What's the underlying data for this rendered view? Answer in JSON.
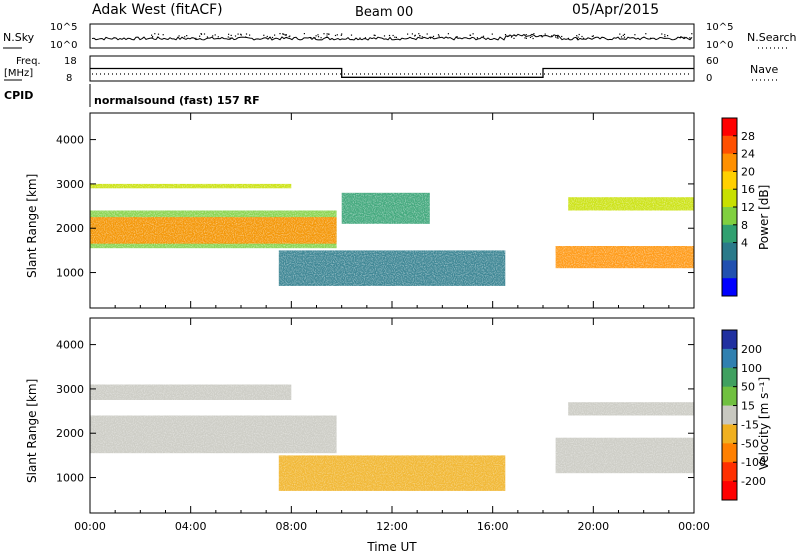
{
  "header": {
    "station": "Adak West (fitACF)",
    "beam": "Beam 00",
    "date": "05/Apr/2015"
  },
  "noise_panel": {
    "left_label": "N.Sky",
    "right_label": "N.Search",
    "left_ticks": [
      "10^5",
      "10^0"
    ],
    "right_ticks": [
      "10^5",
      "10^0"
    ]
  },
  "freq_panel": {
    "left_label_line1": "Freq.",
    "left_label_line2": "[MHz]",
    "left_ticks": [
      "18",
      "8"
    ],
    "right_label": "Nave",
    "right_ticks": [
      "60",
      "0"
    ]
  },
  "cpid_panel": {
    "label": "CPID",
    "program": "normalsound (fast) 157 RF"
  },
  "power_panel": {
    "ylabel": "Slant Range [km]",
    "y_ticks": [
      "4000",
      "3000",
      "2000",
      "1000"
    ],
    "colorbar_label": "Power [dB]",
    "colorbar_ticks": [
      "28",
      "24",
      "20",
      "16",
      "12",
      "8",
      "4"
    ],
    "colorbar_colors": [
      "#ff0000",
      "#ff5000",
      "#ff9000",
      "#ffd000",
      "#c8e000",
      "#80d040",
      "#30a070",
      "#2a7a8a",
      "#2050b0",
      "#0000ff"
    ]
  },
  "velocity_panel": {
    "ylabel": "Slant Range [km]",
    "y_ticks": [
      "4000",
      "3000",
      "2000",
      "1000"
    ],
    "colorbar_label": "Velocity [m s⁻¹]",
    "colorbar_ticks": [
      "200",
      "100",
      "50",
      "15",
      "-15",
      "-50",
      "-100",
      "-200"
    ],
    "colorbar_colors": [
      "#2030a0",
      "#3080b0",
      "#40a060",
      "#70c040",
      "#c8c8c0",
      "#f0b020",
      "#ff8000",
      "#ff3000",
      "#ff0000"
    ]
  },
  "x_axis": {
    "label": "Time UT",
    "ticks": [
      "00:00",
      "04:00",
      "08:00",
      "12:00",
      "16:00",
      "20:00",
      "00:00"
    ]
  },
  "chart_data": {
    "type": "heatmap",
    "title": "Adak West (fitACF)",
    "subtitle": "Beam 00 05/Apr/2015",
    "xlabel": "Time UT",
    "ylabel": "Slant Range [km]",
    "x_range_hours": [
      0,
      24
    ],
    "y_range_km": [
      200,
      4600
    ],
    "frequency_mhz": {
      "hours": [
        0,
        10,
        10,
        18,
        18,
        24
      ],
      "values": [
        13,
        13,
        9.5,
        9.5,
        13,
        13
      ]
    },
    "power_bands": [
      {
        "start_h": 0.0,
        "end_h": 9.8,
        "range_start_km": 1650,
        "range_end_km": 2250,
        "power_db": 26
      },
      {
        "start_h": 0.0,
        "end_h": 9.8,
        "range_start_km": 1550,
        "range_end_km": 2400,
        "power_db": 12
      },
      {
        "start_h": 0.0,
        "end_h": 8.0,
        "range_start_km": 2900,
        "range_end_km": 3000,
        "power_db": 16
      },
      {
        "start_h": 10.0,
        "end_h": 13.5,
        "range_start_km": 2100,
        "range_end_km": 2800,
        "power_db": 10
      },
      {
        "start_h": 7.5,
        "end_h": 16.5,
        "range_start_km": 700,
        "range_end_km": 1500,
        "power_db": 6
      },
      {
        "start_h": 18.5,
        "end_h": 24.0,
        "range_start_km": 1100,
        "range_end_km": 1600,
        "power_db": 24
      },
      {
        "start_h": 19.0,
        "end_h": 24.0,
        "range_start_km": 2400,
        "range_end_km": 2700,
        "power_db": 16
      }
    ],
    "velocity_bands": [
      {
        "start_h": 0.0,
        "end_h": 9.8,
        "range_start_km": 1550,
        "range_end_km": 2400,
        "velocity_ms": 0
      },
      {
        "start_h": 0.0,
        "end_h": 8.0,
        "range_start_km": 2750,
        "range_end_km": 3100,
        "velocity_ms": 0
      },
      {
        "start_h": 7.5,
        "end_h": 16.5,
        "range_start_km": 700,
        "range_end_km": 1500,
        "velocity_ms": -40
      },
      {
        "start_h": 18.5,
        "end_h": 24.0,
        "range_start_km": 1100,
        "range_end_km": 1900,
        "velocity_ms": 0
      },
      {
        "start_h": 19.0,
        "end_h": 24.0,
        "range_start_km": 2400,
        "range_end_km": 2700,
        "velocity_ms": 0
      }
    ]
  }
}
